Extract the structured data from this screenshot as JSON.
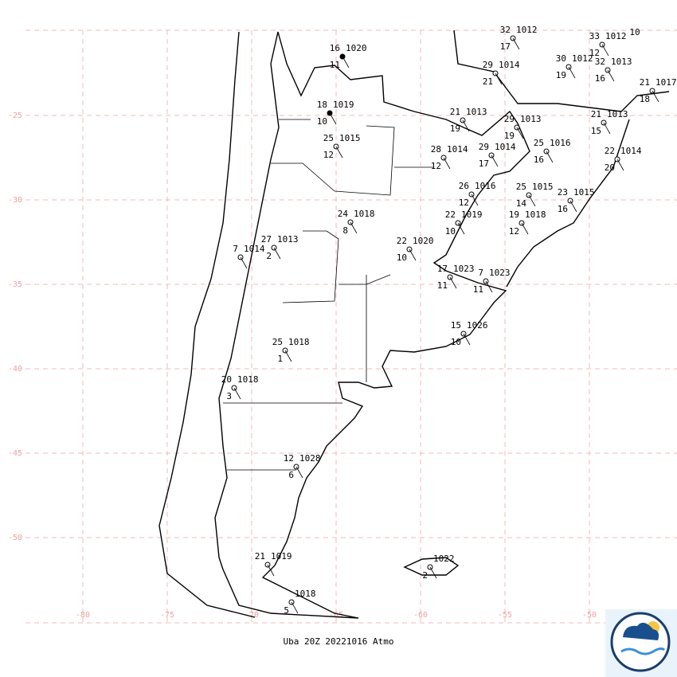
{
  "map": {
    "latitudes": [
      {
        "value": -25,
        "label": "-25"
      },
      {
        "value": -30,
        "label": "-30"
      },
      {
        "value": -35,
        "label": "-35"
      },
      {
        "value": -40,
        "label": "-40"
      },
      {
        "value": -45,
        "label": "-45"
      },
      {
        "value": -50,
        "label": "-50"
      }
    ],
    "longitudes": [
      {
        "value": -80,
        "label": "-80"
      },
      {
        "value": -75,
        "label": "-75"
      },
      {
        "value": -70,
        "label": "-70"
      },
      {
        "value": -65,
        "label": "-65"
      },
      {
        "value": -60,
        "label": "-60"
      },
      {
        "value": -55,
        "label": "-55"
      },
      {
        "value": -50,
        "label": "-50"
      }
    ],
    "stations": [
      {
        "temp": "16",
        "pressure": "1020",
        "dew": "11"
      },
      {
        "temp": "18",
        "pressure": "1019",
        "dew": "10"
      },
      {
        "temp": "25",
        "pressure": "1015",
        "dew": "12"
      },
      {
        "temp": "24",
        "pressure": "1018",
        "dew": "8"
      },
      {
        "temp": "27",
        "pressure": "1013",
        "dew": "2"
      },
      {
        "temp": "7",
        "pressure": "1014"
      },
      {
        "temp": "25",
        "pressure": "1018",
        "dew": "1"
      },
      {
        "temp": "20",
        "pressure": "1018",
        "dew": "3"
      },
      {
        "temp": "12",
        "pressure": "1028",
        "dew": "6"
      },
      {
        "temp": "21",
        "pressure": "1019"
      },
      {
        "pressure": "1018",
        "dew": "5"
      },
      {
        "temp": "22",
        "pressure": "1020",
        "dew": "10"
      },
      {
        "temp": "17",
        "pressure": "1023",
        "dew": "11"
      },
      {
        "temp": "7",
        "pressure": "1023",
        "dew": "11"
      },
      {
        "temp": "15",
        "pressure": "1026",
        "dew": "10"
      },
      {
        "temp": "22",
        "pressure": "1019",
        "dew": "10"
      },
      {
        "temp": "26",
        "pressure": "1016",
        "dew": "12"
      },
      {
        "temp": "28",
        "pressure": "1014",
        "dew": "12"
      },
      {
        "temp": "29",
        "pressure": "1014",
        "dew": "17"
      },
      {
        "temp": "21",
        "pressure": "1013",
        "dew": "19"
      },
      {
        "temp": "29",
        "pressure": "1013",
        "dew": "19"
      },
      {
        "temp": "25",
        "pressure": "1016",
        "dew": "16"
      },
      {
        "temp": "25",
        "pressure": "1015",
        "dew": "14"
      },
      {
        "temp": "19",
        "pressure": "1018",
        "dew": "12"
      },
      {
        "temp": "23",
        "pressure": "1015",
        "dew": "16"
      },
      {
        "temp": "32",
        "pressure": "1012",
        "dew": "17"
      },
      {
        "temp": "29",
        "pressure": "1014",
        "dew": "21"
      },
      {
        "temp": "33",
        "pressure": "1012",
        "dew": "12"
      },
      {
        "temp": "30",
        "pressure": "1012",
        "dew": "19"
      },
      {
        "temp": "32",
        "pressure": "1013",
        "dew": "16"
      },
      {
        "temp": "21",
        "pressure": "1017",
        "dew": "18"
      },
      {
        "temp": "21",
        "pressure": "1013",
        "dew": "15"
      },
      {
        "temp": "22",
        "pressure": "1014",
        "dew": "20"
      },
      {
        "pressure": "1022",
        "dew": "2"
      }
    ],
    "edge_label": "10",
    "footer": "Uba 20Z 20221016 Atmo"
  }
}
